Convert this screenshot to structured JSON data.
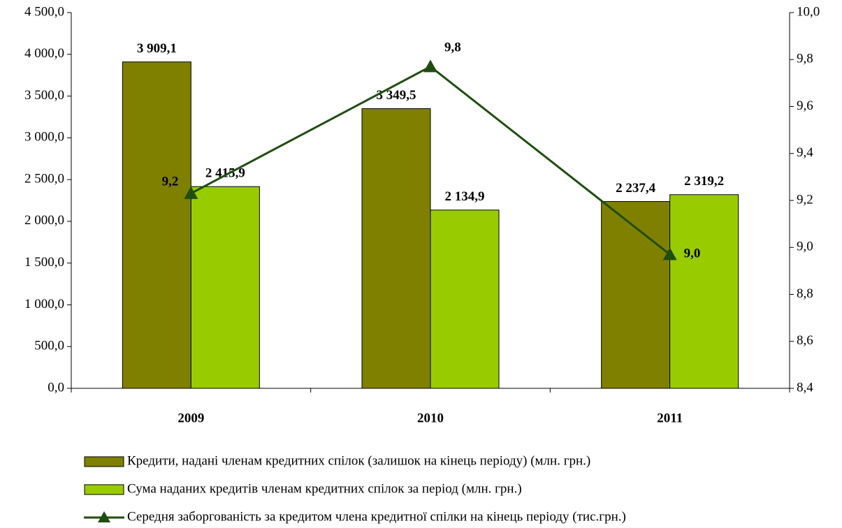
{
  "chart_data": {
    "type": "bar",
    "categories": [
      "2009",
      "2010",
      "2011"
    ],
    "series": [
      {
        "name": "Кредити, надані членам кредитних спілок (залишок на кінець періоду) (млн. грн.)",
        "color": "#808000",
        "type": "bar",
        "values": [
          3909.1,
          3349.5,
          2237.4
        ],
        "value_labels": [
          "3 909,1",
          "3 349,5",
          "2 237,4"
        ]
      },
      {
        "name": "Сума наданих кредитів членам кредитних спілок за період (млн. грн.)",
        "color": "#99cc00",
        "type": "bar",
        "values": [
          2415.9,
          2134.9,
          2319.2
        ],
        "value_labels": [
          "2 415,9",
          "2 134,9",
          "2 319,2"
        ]
      },
      {
        "name": "Середня заборгованість за кредитом члена кредитної спілки на кінець періоду (тис.грн.)",
        "color": "#1f4e0f",
        "type": "line",
        "axis": "y2",
        "values": [
          9.23,
          9.77,
          8.97
        ],
        "value_labels": [
          "9,2",
          "9,8",
          "9,0"
        ]
      }
    ],
    "ylim": [
      0,
      4500
    ],
    "yticks": [
      {
        "value": 0,
        "label": "0,0"
      },
      {
        "value": 500,
        "label": "500,0"
      },
      {
        "value": 1000,
        "label": "1 000,0"
      },
      {
        "value": 1500,
        "label": "1 500,0"
      },
      {
        "value": 2000,
        "label": "2 000,0"
      },
      {
        "value": 2500,
        "label": "2 500,0"
      },
      {
        "value": 3000,
        "label": "3 000,0"
      },
      {
        "value": 3500,
        "label": "3 500,0"
      },
      {
        "value": 4000,
        "label": "4 000,0"
      },
      {
        "value": 4500,
        "label": "4 500,0"
      }
    ],
    "y2lim": [
      8.4,
      10.0
    ],
    "y2ticks": [
      {
        "value": 8.4,
        "label": "8,4"
      },
      {
        "value": 8.6,
        "label": "8,6"
      },
      {
        "value": 8.8,
        "label": "8,8"
      },
      {
        "value": 9.0,
        "label": "9,0"
      },
      {
        "value": 9.2,
        "label": "9,2"
      },
      {
        "value": 9.4,
        "label": "9,4"
      },
      {
        "value": 9.6,
        "label": "9,6"
      },
      {
        "value": 9.8,
        "label": "9,8"
      },
      {
        "value": 10.0,
        "label": "10,0"
      }
    ],
    "legend": "bottom"
  }
}
